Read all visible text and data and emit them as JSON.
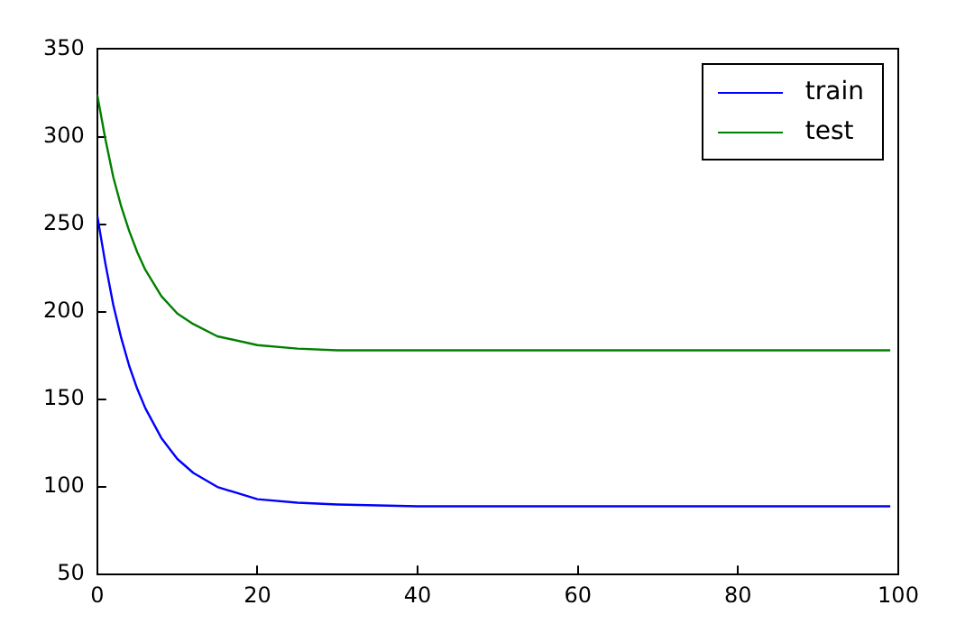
{
  "chart_data": {
    "type": "line",
    "x": [
      0,
      1,
      2,
      3,
      4,
      5,
      6,
      8,
      10,
      12,
      15,
      20,
      25,
      30,
      40,
      60,
      80,
      99
    ],
    "series": [
      {
        "name": "train",
        "color": "#0000ff",
        "values": [
          255,
          228,
          204,
          185,
          169,
          156,
          145,
          128,
          116,
          108,
          100,
          93,
          91,
          90,
          89,
          89,
          89,
          89
        ]
      },
      {
        "name": "test",
        "color": "#008000",
        "values": [
          324,
          299,
          277,
          260,
          246,
          234,
          224,
          209,
          199,
          193,
          186,
          181,
          179,
          178,
          178,
          178,
          178,
          178
        ]
      }
    ],
    "xlim": [
      0,
      100
    ],
    "xticks": [
      0,
      20,
      40,
      60,
      80,
      100
    ],
    "ylim": [
      50,
      350
    ],
    "yticks": [
      50,
      100,
      150,
      200,
      250,
      300,
      350
    ],
    "grid": false,
    "legend": "top right",
    "marker": "none",
    "line_style": "solid"
  }
}
